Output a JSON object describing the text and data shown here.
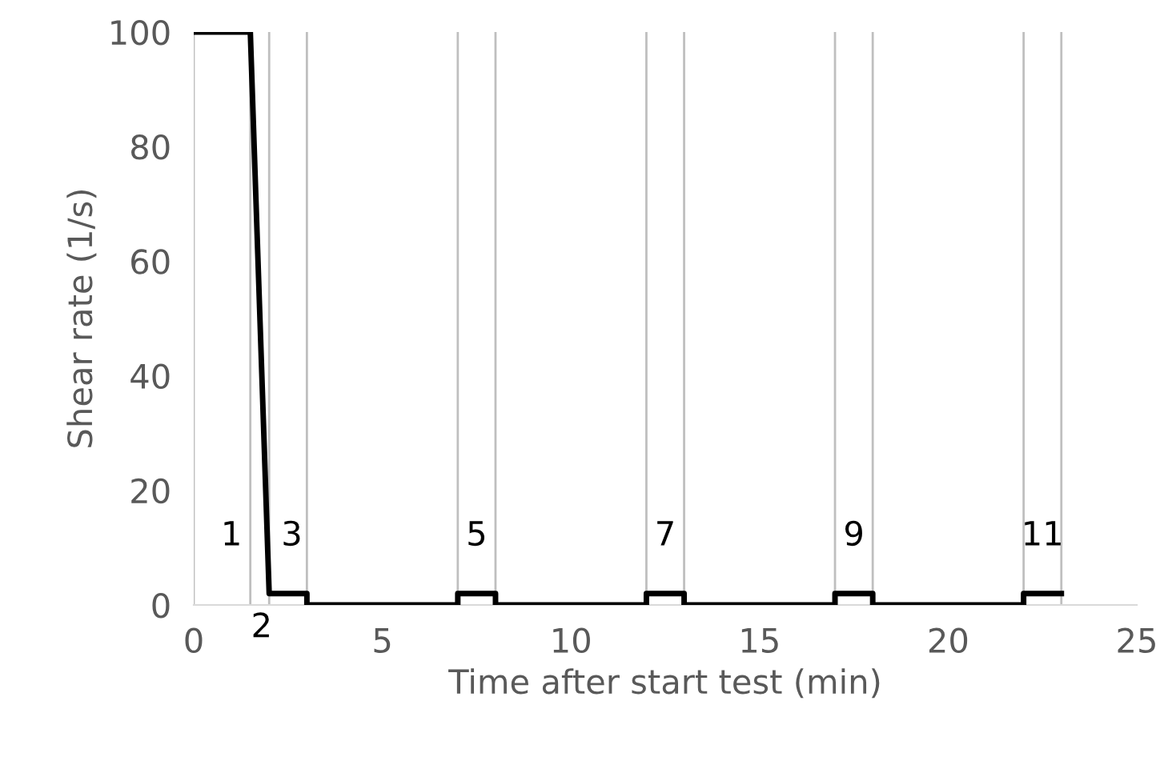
{
  "chart_data": {
    "type": "line",
    "xlabel": "Time after start test (min)",
    "ylabel": "Shear rate (1/s)",
    "series": [
      {
        "color": "#000000",
        "x": [
          0,
          1.5,
          2,
          3,
          3,
          7,
          7,
          8,
          8,
          12,
          12,
          13,
          13,
          17,
          17,
          18,
          18,
          22,
          22,
          23
        ],
        "values": [
          100,
          100,
          2,
          2,
          0,
          0,
          2,
          2,
          0,
          0,
          2,
          2,
          0,
          0,
          2,
          2,
          0,
          0,
          2,
          2
        ]
      }
    ],
    "xlim": [
      0,
      25
    ],
    "ylim": [
      0,
      100
    ],
    "xticks": [
      0,
      5,
      10,
      15,
      20,
      25
    ],
    "yticks": [
      0,
      20,
      40,
      60,
      80,
      100
    ],
    "ref_lines": [
      {
        "axis": "x",
        "value": 0,
        "color": "#bfbfbf"
      },
      {
        "axis": "x",
        "value": 1.5,
        "color": "#bfbfbf"
      },
      {
        "axis": "x",
        "value": 2,
        "color": "#bfbfbf"
      },
      {
        "axis": "x",
        "value": 3,
        "color": "#bfbfbf"
      },
      {
        "axis": "x",
        "value": 7,
        "color": "#bfbfbf"
      },
      {
        "axis": "x",
        "value": 8,
        "color": "#bfbfbf"
      },
      {
        "axis": "x",
        "value": 12,
        "color": "#bfbfbf"
      },
      {
        "axis": "x",
        "value": 13,
        "color": "#bfbfbf"
      },
      {
        "axis": "x",
        "value": 17,
        "color": "#bfbfbf"
      },
      {
        "axis": "x",
        "value": 18,
        "color": "#bfbfbf"
      },
      {
        "axis": "x",
        "value": 22,
        "color": "#bfbfbf"
      },
      {
        "axis": "x",
        "value": 23,
        "color": "#bfbfbf"
      }
    ],
    "annotations": [
      "1",
      "2",
      "3",
      "5",
      "7",
      "9",
      "11"
    ],
    "grid": false,
    "legend": false,
    "marker": "none",
    "line_style": "solid"
  }
}
